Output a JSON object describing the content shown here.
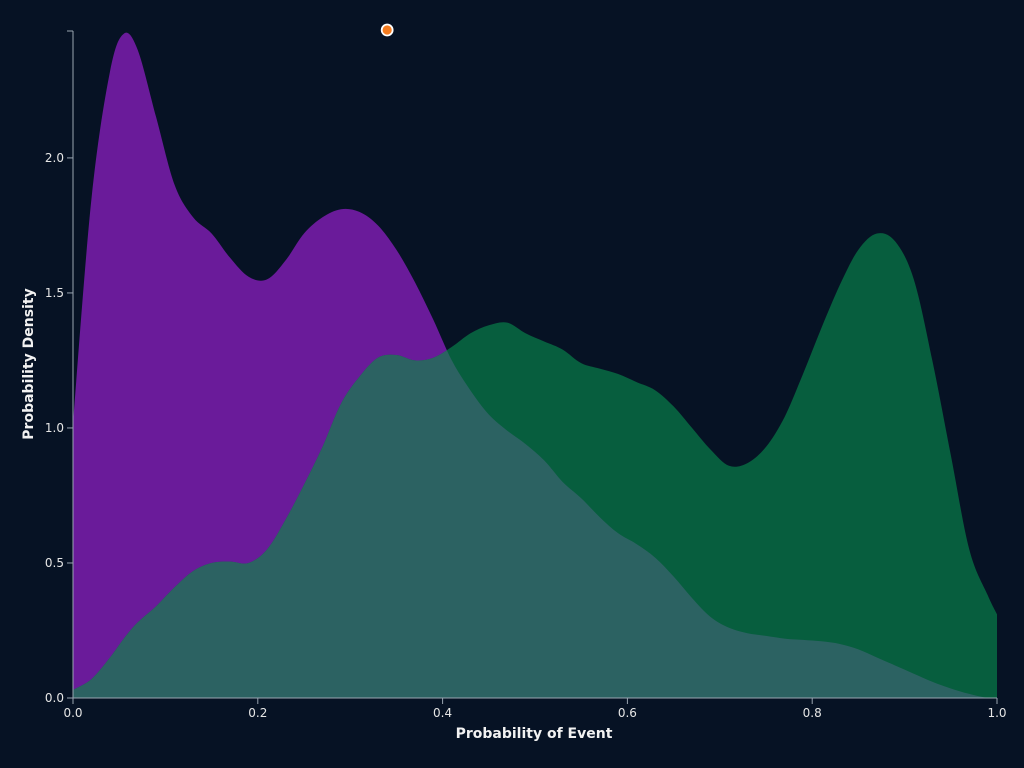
{
  "colors": {
    "background": "#061224",
    "series_a": "#6a1b9a",
    "series_b": "#075e3e",
    "overlap": "#2c6262",
    "axis": "#9aa5b1",
    "marker_line": "#f5b060",
    "marker_fill": "#f57c1f"
  },
  "chart_data": {
    "type": "area",
    "xlabel": "Probability of Event",
    "ylabel": "Probability Density",
    "xlim": [
      0,
      1
    ],
    "ylim": [
      0,
      2.47
    ],
    "xticks": [
      "0.0",
      "0.2",
      "0.4",
      "0.6",
      "0.8",
      "1.0"
    ],
    "yticks": [
      "0.0",
      "0.5",
      "1.0",
      "1.5",
      "2.0"
    ],
    "grid": false,
    "legend": "none",
    "x": [
      0,
      0.02,
      0.04,
      0.055,
      0.07,
      0.09,
      0.11,
      0.13,
      0.15,
      0.17,
      0.19,
      0.21,
      0.23,
      0.25,
      0.27,
      0.29,
      0.31,
      0.33,
      0.35,
      0.37,
      0.39,
      0.41,
      0.43,
      0.45,
      0.47,
      0.49,
      0.51,
      0.53,
      0.55,
      0.57,
      0.59,
      0.61,
      0.63,
      0.65,
      0.67,
      0.69,
      0.71,
      0.73,
      0.75,
      0.77,
      0.79,
      0.81,
      0.83,
      0.85,
      0.87,
      0.89,
      0.91,
      0.93,
      0.95,
      0.97,
      0.99,
      1.0
    ],
    "series": [
      {
        "values": [
          1.02,
          1.85,
          2.32,
          2.46,
          2.4,
          2.15,
          1.9,
          1.78,
          1.72,
          1.63,
          1.56,
          1.55,
          1.62,
          1.72,
          1.78,
          1.81,
          1.8,
          1.75,
          1.66,
          1.54,
          1.4,
          1.25,
          1.14,
          1.05,
          0.99,
          0.94,
          0.88,
          0.8,
          0.74,
          0.67,
          0.61,
          0.57,
          0.52,
          0.45,
          0.37,
          0.3,
          0.26,
          0.24,
          0.23,
          0.22,
          0.215,
          0.21,
          0.2,
          0.18,
          0.15,
          0.12,
          0.09,
          0.06,
          0.035,
          0.015,
          0.0,
          0.0
        ]
      },
      {
        "values": [
          0.03,
          0.07,
          0.15,
          0.22,
          0.28,
          0.34,
          0.41,
          0.47,
          0.5,
          0.505,
          0.5,
          0.55,
          0.66,
          0.79,
          0.93,
          1.09,
          1.19,
          1.26,
          1.27,
          1.25,
          1.26,
          1.3,
          1.35,
          1.38,
          1.39,
          1.35,
          1.32,
          1.29,
          1.24,
          1.22,
          1.2,
          1.17,
          1.14,
          1.08,
          1.0,
          0.92,
          0.86,
          0.87,
          0.93,
          1.04,
          1.2,
          1.37,
          1.53,
          1.66,
          1.72,
          1.69,
          1.55,
          1.25,
          0.9,
          0.55,
          0.38,
          0.31
        ]
      }
    ],
    "marker": {
      "x": 0.34
    }
  }
}
